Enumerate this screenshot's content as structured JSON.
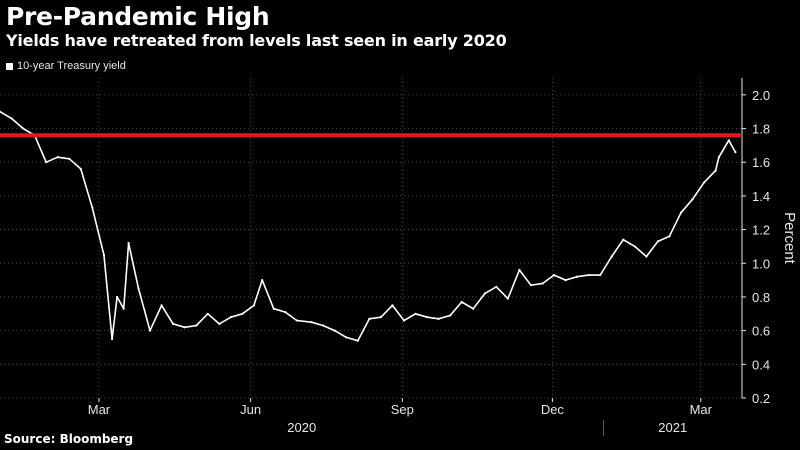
{
  "title": "Pre-Pandemic High",
  "subtitle": "Yields have retreated from levels last seen in early 2020",
  "source": "Source: Bloomberg",
  "colors": {
    "background": "#000000",
    "series": "#ffffff",
    "reference_line": "#e8141c",
    "grid": "#5a5a5a",
    "axis_text": "#e6e6e6"
  },
  "chart_data": {
    "type": "line",
    "ylabel": "Percent",
    "ylim": [
      0.2,
      2.1
    ],
    "yticks": [
      0.2,
      0.4,
      0.6,
      0.8,
      1.0,
      1.2,
      1.4,
      1.6,
      1.8,
      2.0
    ],
    "ytick_labels": [
      "0.2",
      "0.4",
      "0.6",
      "0.8",
      "1.0",
      "1.2",
      "1.4",
      "1.6",
      "1.8",
      "2.0"
    ],
    "y_axis_side": "right",
    "grid": true,
    "xlim": [
      "2020-01-01",
      "2021-03-26"
    ],
    "month_ticks": [
      {
        "date": "2020-03-01",
        "label": "Mar"
      },
      {
        "date": "2020-06-01",
        "label": "Jun"
      },
      {
        "date": "2020-09-01",
        "label": "Sep"
      },
      {
        "date": "2020-12-01",
        "label": "Dec"
      },
      {
        "date": "2021-03-01",
        "label": "Mar"
      }
    ],
    "year_labels": [
      {
        "label": "2020",
        "from": "2020-01-01",
        "to": "2021-01-01"
      },
      {
        "label": "2021",
        "from": "2021-01-01",
        "to": "2021-03-26"
      }
    ],
    "reference_line": {
      "y": 1.76
    },
    "series": [
      {
        "name": "10-year Treasury yield",
        "x": [
          "2020-01-01",
          "2020-01-08",
          "2020-01-15",
          "2020-01-22",
          "2020-01-29",
          "2020-02-05",
          "2020-02-12",
          "2020-02-19",
          "2020-02-26",
          "2020-03-04",
          "2020-03-09",
          "2020-03-12",
          "2020-03-16",
          "2020-03-19",
          "2020-03-25",
          "2020-04-01",
          "2020-04-08",
          "2020-04-15",
          "2020-04-22",
          "2020-04-29",
          "2020-05-06",
          "2020-05-13",
          "2020-05-20",
          "2020-05-27",
          "2020-06-03",
          "2020-06-08",
          "2020-06-15",
          "2020-06-22",
          "2020-06-29",
          "2020-07-08",
          "2020-07-15",
          "2020-07-22",
          "2020-07-29",
          "2020-08-05",
          "2020-08-12",
          "2020-08-19",
          "2020-08-26",
          "2020-09-02",
          "2020-09-09",
          "2020-09-16",
          "2020-09-23",
          "2020-09-30",
          "2020-10-07",
          "2020-10-14",
          "2020-10-21",
          "2020-10-28",
          "2020-11-04",
          "2020-11-11",
          "2020-11-18",
          "2020-11-25",
          "2020-12-02",
          "2020-12-09",
          "2020-12-16",
          "2020-12-23",
          "2020-12-30",
          "2021-01-06",
          "2021-01-13",
          "2021-01-20",
          "2021-01-27",
          "2021-02-03",
          "2021-02-10",
          "2021-02-17",
          "2021-02-24",
          "2021-03-03",
          "2021-03-10",
          "2021-03-12",
          "2021-03-18",
          "2021-03-22"
        ],
        "y": [
          1.9,
          1.86,
          1.8,
          1.76,
          1.6,
          1.63,
          1.62,
          1.56,
          1.33,
          1.05,
          0.55,
          0.8,
          0.73,
          1.12,
          0.85,
          0.6,
          0.75,
          0.64,
          0.62,
          0.63,
          0.7,
          0.64,
          0.68,
          0.7,
          0.75,
          0.9,
          0.73,
          0.71,
          0.66,
          0.65,
          0.63,
          0.6,
          0.56,
          0.54,
          0.67,
          0.68,
          0.75,
          0.66,
          0.7,
          0.68,
          0.67,
          0.69,
          0.77,
          0.73,
          0.82,
          0.86,
          0.79,
          0.96,
          0.87,
          0.88,
          0.93,
          0.9,
          0.92,
          0.93,
          0.93,
          1.04,
          1.14,
          1.1,
          1.04,
          1.13,
          1.16,
          1.3,
          1.38,
          1.48,
          1.55,
          1.63,
          1.73,
          1.66
        ]
      }
    ]
  }
}
